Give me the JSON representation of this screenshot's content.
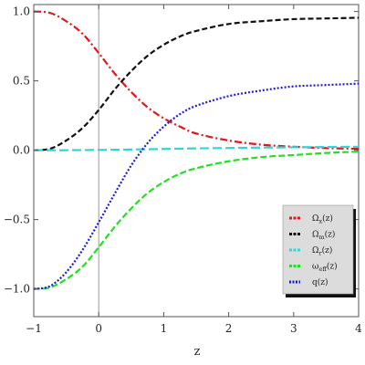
{
  "chart_data": {
    "type": "line",
    "xlabel": "z",
    "ylabel": "",
    "xlim": [
      -1,
      4
    ],
    "ylim": [
      -1.2,
      1.05
    ],
    "x_ticks": [
      -1,
      0,
      1,
      2,
      3,
      4
    ],
    "x_tick_labels": [
      "−1",
      "0",
      "1",
      "2",
      "3",
      "4"
    ],
    "y_ticks": [
      1.0,
      0.5,
      0.0,
      -0.5,
      -1.0
    ],
    "y_tick_labels": [
      "1.0",
      "0.5",
      "0.0",
      "−0.5",
      "−1.0"
    ],
    "grid": false,
    "vertical_reference_line_x": 0,
    "legend_position": "lower-right",
    "x": [
      -1,
      -0.75,
      -0.5,
      -0.25,
      0,
      0.25,
      0.5,
      0.75,
      1,
      1.25,
      1.5,
      2,
      2.5,
      3,
      3.5,
      4
    ],
    "series": [
      {
        "name": "Ωx(z)",
        "name_main": "Ω",
        "name_sub": "x",
        "name_tail": "(z)",
        "color": "#e8141c",
        "dash": "8,3,2,3",
        "values": [
          1.0,
          0.99,
          0.93,
          0.84,
          0.7,
          0.55,
          0.42,
          0.31,
          0.23,
          0.17,
          0.12,
          0.07,
          0.04,
          0.025,
          0.015,
          0.01
        ]
      },
      {
        "name": "Ωm(z)",
        "name_main": "Ω",
        "name_sub": "m",
        "name_tail": "(z)",
        "color": "#111111",
        "dash": "6,3",
        "values": [
          0.0,
          0.01,
          0.07,
          0.16,
          0.29,
          0.44,
          0.57,
          0.68,
          0.76,
          0.82,
          0.86,
          0.91,
          0.93,
          0.945,
          0.95,
          0.955
        ]
      },
      {
        "name": "Ωr(z)",
        "name_main": "Ω",
        "name_sub": "r",
        "name_tail": "(z)",
        "color": "#2fd6d6",
        "dash": "10,4",
        "values": [
          0.0,
          0.0,
          0.0,
          0.001,
          0.002,
          0.003,
          0.005,
          0.007,
          0.009,
          0.011,
          0.013,
          0.016,
          0.019,
          0.021,
          0.023,
          0.025
        ]
      },
      {
        "name": "ωeff(z)",
        "name_main": "ω",
        "name_sub": "eff",
        "name_tail": "(z)",
        "color": "#22e022",
        "dash": "7,3",
        "values": [
          -1.0,
          -0.99,
          -0.93,
          -0.84,
          -0.7,
          -0.55,
          -0.42,
          -0.31,
          -0.23,
          -0.17,
          -0.13,
          -0.08,
          -0.05,
          -0.035,
          -0.02,
          -0.01
        ]
      },
      {
        "name": "q(z)",
        "name_main": "q(z)",
        "name_sub": "",
        "name_tail": "",
        "color": "#1a1ae6",
        "dash": "2,2",
        "values": [
          -1.0,
          -0.98,
          -0.88,
          -0.72,
          -0.52,
          -0.31,
          -0.11,
          0.05,
          0.17,
          0.26,
          0.32,
          0.39,
          0.43,
          0.46,
          0.47,
          0.48
        ]
      }
    ]
  }
}
